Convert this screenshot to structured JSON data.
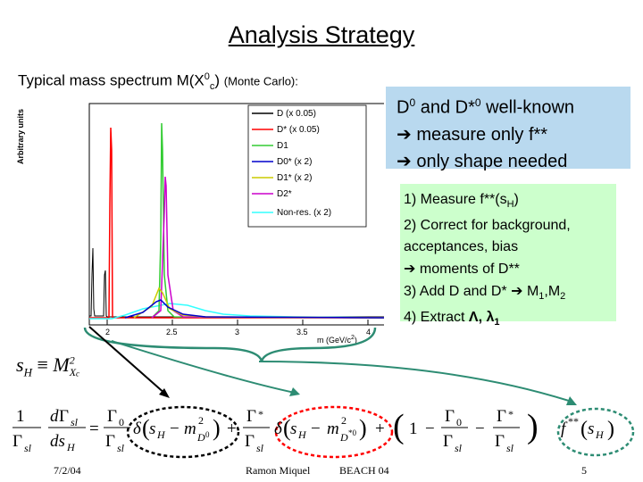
{
  "slide": {
    "title": "Analysis Strategy",
    "subtitle_main": "Typical mass spectrum M(X",
    "subtitle_sup": "0",
    "subtitle_sub": "c",
    "subtitle_close": ")",
    "subtitle_note": "(Monte Carlo):"
  },
  "plot": {
    "ylabel": "Arbitrary units",
    "xlabel": "m (GeV/c",
    "xlabel_sup": "2",
    "xlabel_close": ")",
    "xticks": [
      "2",
      "2.5",
      "3",
      "3.5",
      "4"
    ],
    "legend": [
      {
        "label": "D (x 0.05)",
        "color": "#000000"
      },
      {
        "label": "D* (x 0.05)",
        "color": "#ff0000"
      },
      {
        "label": "D1",
        "color": "#33cc33"
      },
      {
        "label": "D0* (x 2)",
        "color": "#0000cc"
      },
      {
        "label": "D1* (x 2)",
        "color": "#cccc00"
      },
      {
        "label": "D2*",
        "color": "#cc00cc"
      },
      {
        "label": "Non-res. (x 2)",
        "color": "#33ffff"
      }
    ]
  },
  "blue_box": {
    "line1_a": "D",
    "line1_sup1": "0",
    "line1_b": " and D*",
    "line1_sup2": "0",
    "line1_c": " well-known",
    "line2": "measure only f**",
    "line3": "only shape needed"
  },
  "green_box": {
    "line1_a": "1) Measure f**(s",
    "line1_sub": "H",
    "line1_b": ")",
    "line2": "2) Correct for background,",
    "line3": "acceptances, bias",
    "line4": "moments of D**",
    "line5_a": "3) Add D and D*",
    "line5_b": "M",
    "line5_sub1": "1",
    "line5_c": ",M",
    "line5_sub2": "2",
    "line6_a": "4) Extract ",
    "line6_b": "Λ, λ",
    "line6_sub": "1"
  },
  "equation": {
    "sH": "s",
    "sH_sub": "H",
    "equiv": "≡",
    "M": "M",
    "M_sup": "2",
    "M_sub": "X",
    "M_subsub": "c"
  },
  "footer": {
    "date": "7/2/04",
    "name": "Ramon Miquel",
    "conference": "BEACH 04",
    "page": "5"
  }
}
